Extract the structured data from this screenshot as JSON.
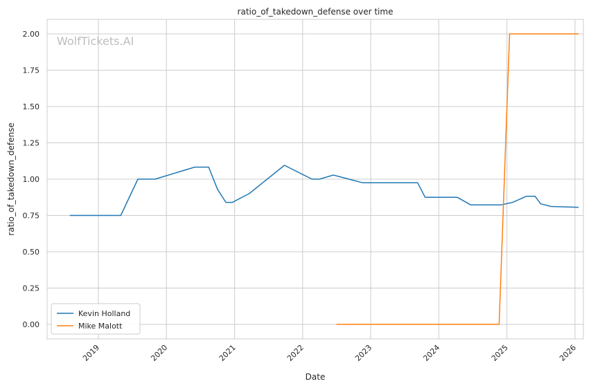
{
  "chart_data": {
    "type": "line",
    "title": "ratio_of_takedown_defense over time",
    "xlabel": "Date",
    "ylabel": "ratio_of_takedown_defense",
    "watermark": "WolfTickets.AI",
    "xlim": [
      "2018-04-01",
      "2026-02-15"
    ],
    "ylim": [
      -0.1,
      2.1
    ],
    "x_ticks": [
      "2019",
      "2020",
      "2021",
      "2022",
      "2023",
      "2024",
      "2025",
      "2026"
    ],
    "y_ticks": [
      "0.00",
      "0.25",
      "0.50",
      "0.75",
      "1.00",
      "1.25",
      "1.50",
      "1.75",
      "2.00"
    ],
    "grid": true,
    "legend_position": "lower-left",
    "series": [
      {
        "name": "Kevin Holland",
        "color": "#1f77b4",
        "points": [
          [
            "2018-08-01",
            0.75
          ],
          [
            "2019-05-01",
            0.75
          ],
          [
            "2019-08-01",
            1.0
          ],
          [
            "2019-11-01",
            1.0
          ],
          [
            "2020-06-01",
            1.083
          ],
          [
            "2020-08-15",
            1.083
          ],
          [
            "2020-10-01",
            0.93
          ],
          [
            "2020-11-15",
            0.84
          ],
          [
            "2020-12-20",
            0.84
          ],
          [
            "2021-03-20",
            0.9
          ],
          [
            "2021-09-25",
            1.095
          ],
          [
            "2022-02-20",
            1.0
          ],
          [
            "2022-04-01",
            1.0
          ],
          [
            "2022-06-15",
            1.028
          ],
          [
            "2022-11-20",
            0.975
          ],
          [
            "2023-09-10",
            0.975
          ],
          [
            "2023-10-20",
            0.875
          ],
          [
            "2024-04-10",
            0.875
          ],
          [
            "2024-06-20",
            0.823
          ],
          [
            "2024-12-01",
            0.823
          ],
          [
            "2025-02-01",
            0.84
          ],
          [
            "2025-04-15",
            0.882
          ],
          [
            "2025-06-01",
            0.882
          ],
          [
            "2025-07-01",
            0.83
          ],
          [
            "2025-08-25",
            0.812
          ],
          [
            "2026-01-20",
            0.806
          ]
        ]
      },
      {
        "name": "Mike Malott",
        "color": "#ff7f0e",
        "points": [
          [
            "2022-07-01",
            0.0
          ],
          [
            "2024-11-20",
            0.0
          ],
          [
            "2025-01-15",
            2.0
          ],
          [
            "2026-01-20",
            2.0
          ]
        ]
      }
    ]
  }
}
